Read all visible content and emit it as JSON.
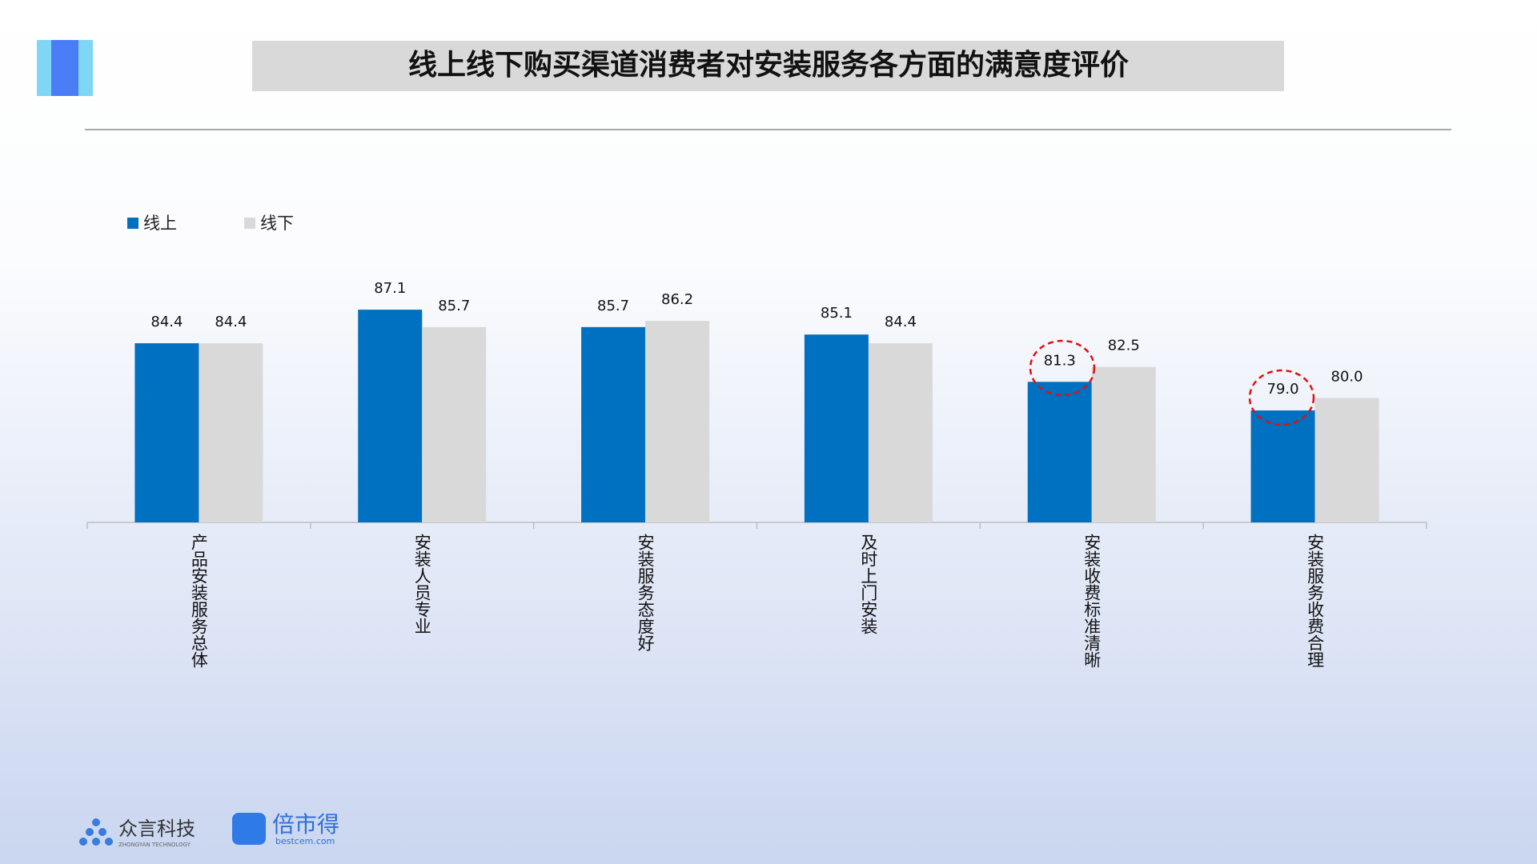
{
  "chart_data": {
    "type": "bar",
    "title": "线上线下购买渠道消费者对安装服务各方面的满意度评价",
    "categories": [
      "产品安装服务总体",
      "安装人员专业",
      "安装服务态度好",
      "及时上门安装",
      "安装收费标准清晰",
      "安装服务收费合理"
    ],
    "series": [
      {
        "name": "线上",
        "color": "#0070c0",
        "values": [
          84.4,
          87.1,
          85.7,
          85.1,
          81.3,
          79.0
        ],
        "value_labels": [
          "84.4",
          "87.1",
          "85.7",
          "85.1",
          "81.3",
          "79.0"
        ]
      },
      {
        "name": "线下",
        "color": "#d9d9d9",
        "values": [
          84.4,
          85.7,
          86.2,
          84.4,
          82.5,
          80.0
        ],
        "value_labels": [
          "84.4",
          "85.7",
          "86.2",
          "84.4",
          "82.5",
          "80.0"
        ]
      }
    ],
    "ylim": [
      70,
      90
    ],
    "legend": "top-left"
  },
  "footer": {
    "brand1": "众言科技",
    "brand1_sub": "ZHONGYAN TECHNOLOGY",
    "brand2": "倍市得",
    "brand2_sub": "bestcem.com"
  }
}
